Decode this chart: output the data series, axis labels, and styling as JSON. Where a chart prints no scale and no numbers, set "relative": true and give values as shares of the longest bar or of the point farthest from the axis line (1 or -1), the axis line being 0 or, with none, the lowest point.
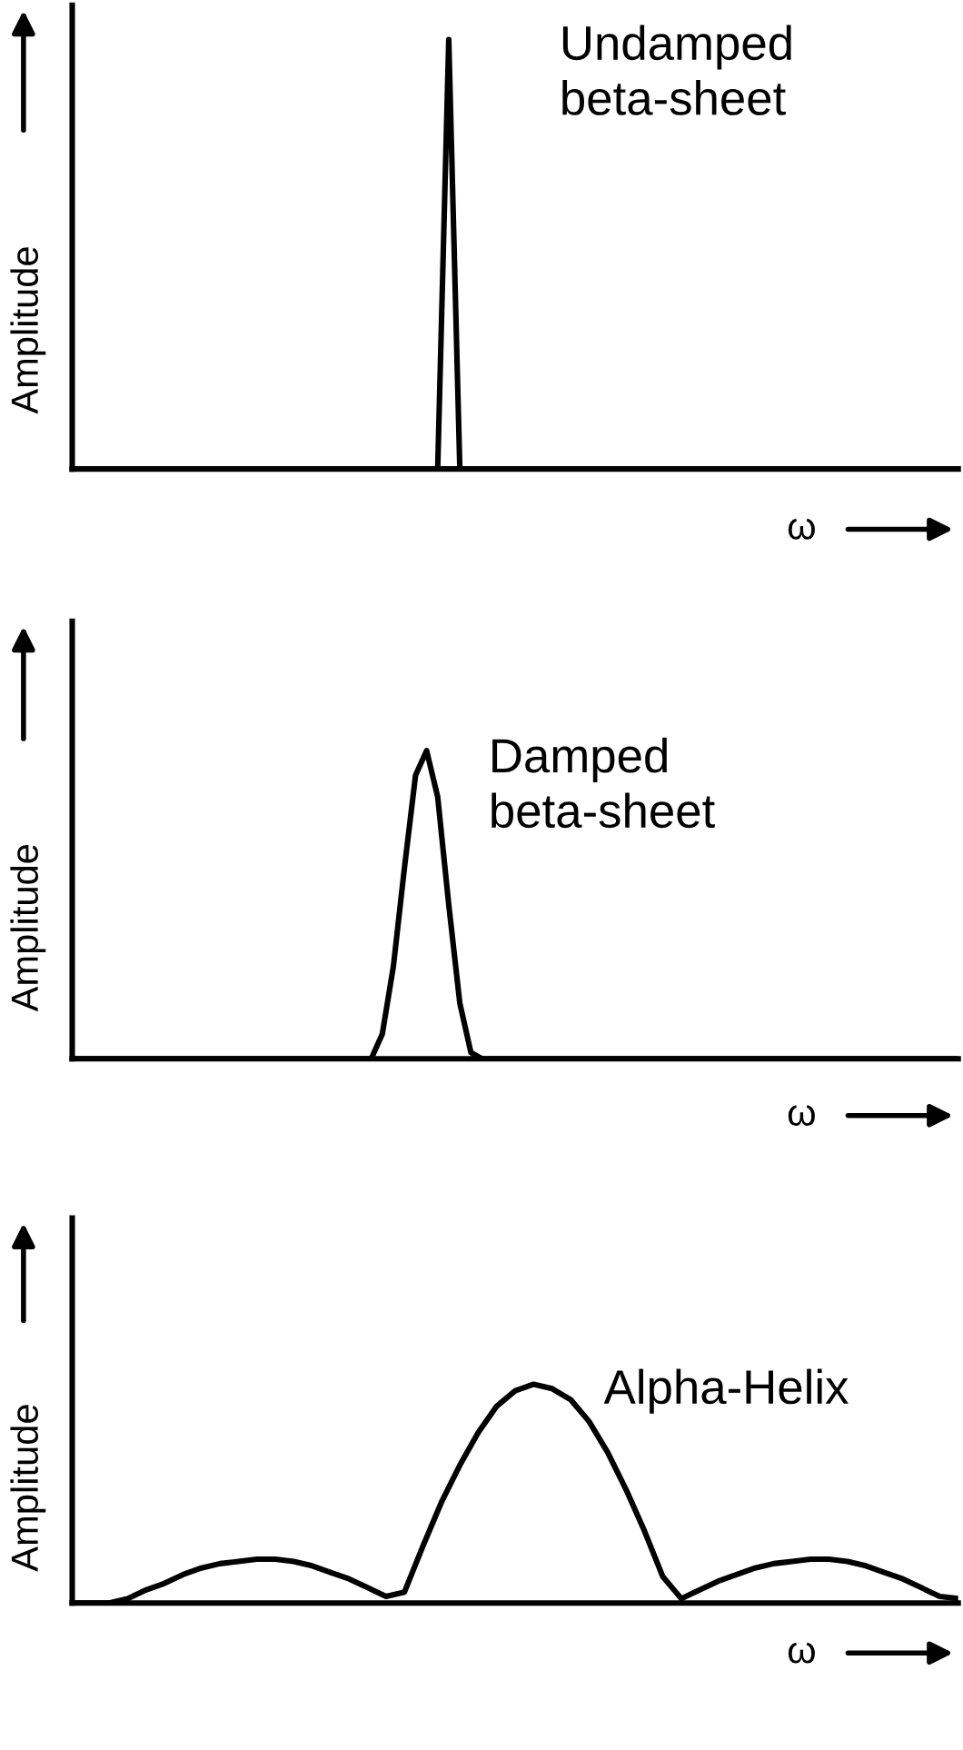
{
  "chart_data": [
    {
      "type": "line",
      "relative": true,
      "ylabel": "Amplitude",
      "xlabel": "ω",
      "annotations": [
        "Undamped\nbeta-sheet"
      ],
      "categories": [
        null,
        null,
        null,
        null,
        null,
        null,
        null,
        null,
        null,
        null,
        null,
        null,
        null,
        null,
        null,
        null,
        null,
        null,
        null,
        null,
        null,
        null,
        null,
        null,
        null,
        null,
        null,
        null,
        null,
        null,
        null,
        null,
        null,
        null,
        null,
        null,
        null,
        null,
        null,
        null,
        null,
        null,
        null,
        null,
        null,
        null,
        null,
        null,
        null,
        null,
        null,
        null,
        null,
        null,
        null,
        null,
        null,
        null,
        null,
        null,
        null,
        null,
        null,
        null,
        null,
        null,
        null,
        null,
        null,
        null,
        null,
        null,
        null,
        null,
        null,
        null,
        null,
        null,
        null,
        null,
        null
      ],
      "series": [
        {
          "color": "#000000",
          "values": [
            0,
            0,
            0,
            0,
            0,
            0,
            0,
            0,
            0,
            0,
            0,
            0,
            0,
            0,
            0,
            0,
            0,
            0,
            0,
            0,
            0,
            0,
            0,
            0,
            0,
            0,
            0,
            0,
            0,
            0,
            0,
            0,
            0,
            0,
            1,
            0,
            0,
            0,
            0,
            0,
            0,
            0,
            0,
            0,
            0,
            0,
            0,
            0,
            0,
            0,
            0,
            0,
            0,
            0,
            0,
            0,
            0,
            0,
            0,
            0,
            0,
            0,
            0,
            0,
            0,
            0,
            0,
            0,
            0,
            0,
            0,
            0,
            0,
            0,
            0,
            0,
            0,
            0,
            0,
            0,
            0
          ]
        }
      ]
    },
    {
      "type": "line",
      "relative": true,
      "ylabel": "Amplitude",
      "xlabel": "ω",
      "annotations": [
        "Damped\nbeta-sheet"
      ],
      "categories": [
        null,
        null,
        null,
        null,
        null,
        null,
        null,
        null,
        null,
        null,
        null,
        null,
        null,
        null,
        null,
        null,
        null,
        null,
        null,
        null,
        null,
        null,
        null,
        null,
        null,
        null,
        null,
        null,
        null,
        null,
        null,
        null,
        null,
        null,
        null,
        null,
        null,
        null,
        null,
        null,
        null,
        null,
        null,
        null,
        null,
        null,
        null,
        null,
        null,
        null,
        null,
        null,
        null,
        null,
        null,
        null,
        null,
        null,
        null,
        null,
        null,
        null,
        null,
        null,
        null,
        null,
        null,
        null,
        null,
        null,
        null,
        null,
        null,
        null,
        null,
        null,
        null,
        null,
        null,
        null,
        null
      ],
      "series": [
        {
          "color": "#000000",
          "values": [
            0,
            0,
            0,
            0,
            0,
            0,
            0,
            0,
            0,
            0,
            0,
            0,
            0,
            0,
            0,
            0,
            0,
            0,
            0,
            0,
            0,
            0,
            0,
            0,
            0,
            0,
            0,
            0,
            0.08,
            0.3,
            0.62,
            0.92,
            1,
            0.85,
            0.5,
            0.18,
            0.02,
            0,
            0,
            0,
            0,
            0,
            0,
            0,
            0,
            0,
            0,
            0,
            0,
            0,
            0,
            0,
            0,
            0,
            0,
            0,
            0,
            0,
            0,
            0,
            0,
            0,
            0,
            0,
            0,
            0,
            0,
            0,
            0,
            0,
            0,
            0,
            0,
            0,
            0,
            0,
            0,
            0,
            0,
            0,
            0
          ]
        }
      ]
    },
    {
      "type": "line",
      "relative": true,
      "ylabel": "Amplitude",
      "xlabel": "ω",
      "annotations": [
        "Alpha-Helix"
      ],
      "categories": [
        null,
        null,
        null,
        null,
        null,
        null,
        null,
        null,
        null,
        null,
        null,
        null,
        null,
        null,
        null,
        null,
        null,
        null,
        null,
        null,
        null,
        null,
        null,
        null,
        null,
        null,
        null,
        null,
        null,
        null,
        null,
        null,
        null,
        null,
        null,
        null,
        null,
        null,
        null,
        null,
        null,
        null,
        null,
        null,
        null,
        null,
        null,
        null,
        null
      ],
      "series": [
        {
          "color": "#000000",
          "values": [
            0,
            0,
            0,
            0.02,
            0.06,
            0.09,
            0.13,
            0.16,
            0.18,
            0.19,
            0.2,
            0.2,
            0.19,
            0.17,
            0.14,
            0.11,
            0.07,
            0.03,
            0.05,
            0.26,
            0.46,
            0.63,
            0.78,
            0.9,
            0.97,
            1,
            0.98,
            0.93,
            0.83,
            0.69,
            0.52,
            0.33,
            0.12,
            0.02,
            0.06,
            0.1,
            0.13,
            0.16,
            0.18,
            0.19,
            0.2,
            0.2,
            0.19,
            0.17,
            0.14,
            0.11,
            0.07,
            0.03,
            0.02
          ]
        }
      ]
    }
  ]
}
